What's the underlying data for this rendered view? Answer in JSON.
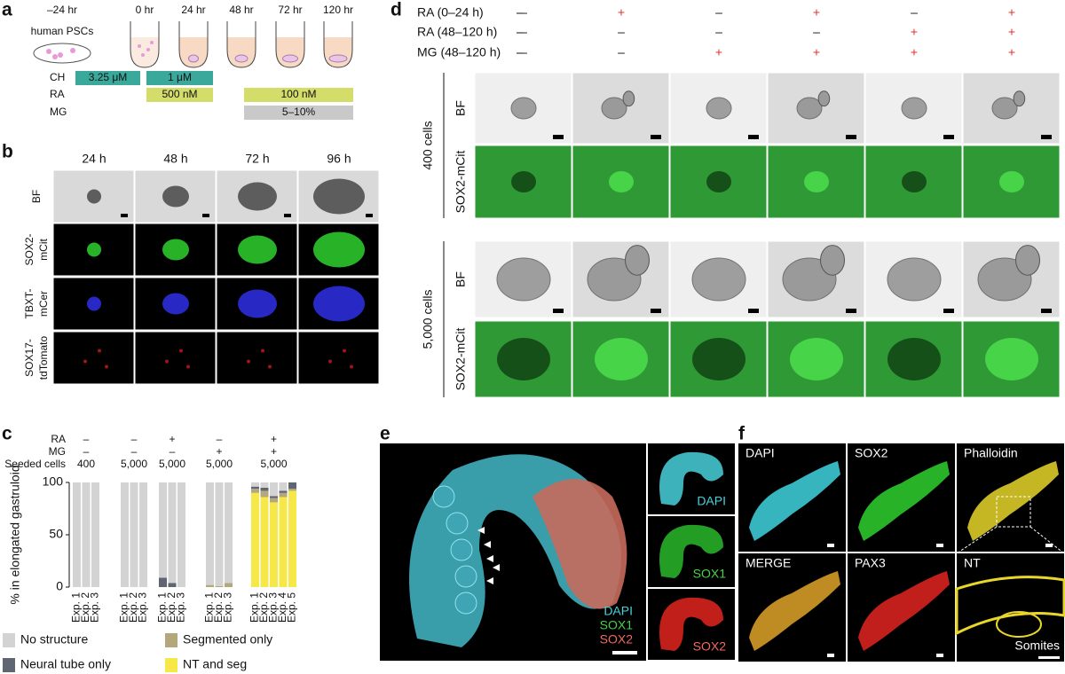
{
  "panel_a": {
    "label": "a",
    "times": [
      "–24 hr",
      "0 hr",
      "24 hr",
      "48 hr",
      "72 hr",
      "120 hr"
    ],
    "cells_label": "human PSCs",
    "rows": [
      {
        "name": "CH",
        "bars": [
          "3.25 μM",
          "1 μM"
        ]
      },
      {
        "name": "RA",
        "bars": [
          "500 nM",
          "100 nM"
        ]
      },
      {
        "name": "MG",
        "bars": [
          "5–10%"
        ]
      }
    ]
  },
  "panel_b": {
    "label": "b",
    "columns": [
      "24 h",
      "48 h",
      "72 h",
      "96 h"
    ],
    "rows": [
      [
        "BF"
      ],
      [
        "SOX2-",
        "mCit"
      ],
      [
        "TBXT-",
        "mCer"
      ],
      [
        "SOX17-",
        "tdTomato"
      ]
    ]
  },
  "chart_data": {
    "type": "bar",
    "stacked": true,
    "label": "c",
    "header_labels": [
      "RA",
      "MG",
      "Seeded cells"
    ],
    "groups": [
      {
        "header": [
          "–",
          "–",
          "400"
        ],
        "categories": [
          "Exp. 1",
          "Exp. 2",
          "Exp. 3"
        ]
      },
      {
        "header": [
          "–",
          "–",
          "5,000"
        ],
        "categories": [
          "Exp. 1",
          "Exp. 2",
          "Exp. 3"
        ]
      },
      {
        "header": [
          "+",
          "–",
          "5,000"
        ],
        "categories": [
          "Exp. 1",
          "Exp. 2",
          "Exp. 3"
        ]
      },
      {
        "header": [
          "–",
          "+",
          "5,000"
        ],
        "categories": [
          "Exp. 1",
          "Exp. 2",
          "Exp. 3"
        ]
      },
      {
        "header": [
          "+",
          "+",
          "5,000"
        ],
        "categories": [
          "Exp. 1",
          "Exp. 2",
          "Exp. 3",
          "Exp. 4",
          "Exp. 5"
        ]
      }
    ],
    "ylabel": "% in elongated gastruloid",
    "ylim": [
      0,
      100
    ],
    "yticks": [
      0,
      50,
      100
    ],
    "series": [
      {
        "name": "NT and seg",
        "color": "#f7e84a",
        "values": [
          0,
          0,
          0,
          0,
          0,
          0,
          0,
          0,
          0,
          0,
          0,
          0,
          90,
          86,
          81,
          86,
          92
        ]
      },
      {
        "name": "Segmented only",
        "color": "#b3a77c",
        "values": [
          0,
          0,
          0,
          0,
          0,
          0,
          0,
          0,
          0,
          2,
          1,
          4,
          4,
          6,
          4,
          4,
          2
        ]
      },
      {
        "name": "Neural tube only",
        "color": "#5f6571",
        "values": [
          0,
          0,
          0,
          0,
          0,
          0,
          9,
          4,
          0,
          0,
          0,
          0,
          2,
          3,
          2,
          2,
          6
        ]
      },
      {
        "name": "No structure",
        "color": "#d3d3d3",
        "values": [
          100,
          100,
          100,
          100,
          100,
          100,
          91,
          96,
          100,
          98,
          99,
          96,
          4,
          5,
          13,
          8,
          0
        ]
      }
    ]
  },
  "panel_d": {
    "label": "d",
    "conditions": [
      {
        "name": "RA (0–24 h)",
        "signs": [
          "–",
          "+",
          "–",
          "+",
          "–",
          "+"
        ],
        "colors": [
          "#111",
          "#e0312f",
          "#111",
          "#e0312f",
          "#111",
          "#e0312f"
        ]
      },
      {
        "name": "RA (48–120 h)",
        "signs": [
          "–",
          "–",
          "–",
          "–",
          "+",
          "+"
        ],
        "colors": [
          "#111",
          "#111",
          "#111",
          "#111",
          "#e0312f",
          "#e0312f"
        ]
      },
      {
        "name": "MG (48–120 h)",
        "signs": [
          "–",
          "–",
          "+",
          "+",
          "+",
          "+"
        ],
        "colors": [
          "#111",
          "#111",
          "#e0312f",
          "#e0312f",
          "#e0312f",
          "#e0312f"
        ]
      }
    ],
    "groups": [
      {
        "name": "400 cells",
        "rows": [
          "BF",
          "SOX2-mCit"
        ]
      },
      {
        "name": "5,000 cells",
        "rows": [
          "BF",
          "SOX2-mCit"
        ]
      }
    ]
  },
  "panel_e": {
    "label": "e",
    "legend": [
      "DAPI",
      "SOX1",
      "SOX2"
    ],
    "insets": [
      "DAPI",
      "SOX1",
      "SOX2"
    ]
  },
  "panel_f": {
    "label": "f",
    "panels": [
      "DAPI",
      "SOX2",
      "Phalloidin",
      "MERGE",
      "PAX3",
      "NT"
    ],
    "annotation": "Somites"
  }
}
